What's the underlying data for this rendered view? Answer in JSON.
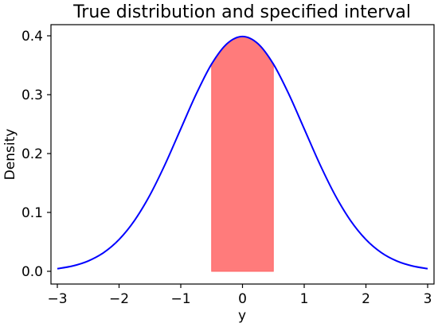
{
  "chart_data": {
    "type": "line",
    "title": "True distribution and specified interval",
    "xlabel": "y",
    "ylabel": "Density",
    "xlim": [
      -3,
      3
    ],
    "ylim": [
      0.0,
      0.4
    ],
    "x_ticks": [
      -3,
      -2,
      -1,
      0,
      1,
      2,
      3
    ],
    "x_tick_labels": [
      "−3",
      "−2",
      "−1",
      "0",
      "1",
      "2",
      "3"
    ],
    "y_ticks": [
      0.0,
      0.1,
      0.2,
      0.3,
      0.4
    ],
    "y_tick_labels": [
      "0.0",
      "0.1",
      "0.2",
      "0.3",
      "0.4"
    ],
    "grid": false,
    "series": [
      {
        "color": "#0000ff",
        "x": [
          -3.0,
          -2.75,
          -2.5,
          -2.25,
          -2.0,
          -1.75,
          -1.5,
          -1.25,
          -1.0,
          -0.75,
          -0.5,
          -0.25,
          0.0,
          0.25,
          0.5,
          0.75,
          1.0,
          1.25,
          1.5,
          1.75,
          2.0,
          2.25,
          2.5,
          2.75,
          3.0
        ],
        "values": [
          0.0044,
          0.0091,
          0.0175,
          0.0317,
          0.054,
          0.0863,
          0.1295,
          0.1826,
          0.242,
          0.3011,
          0.3521,
          0.3867,
          0.3989,
          0.3867,
          0.3521,
          0.3011,
          0.242,
          0.1826,
          0.1295,
          0.0863,
          0.054,
          0.0317,
          0.0175,
          0.0091,
          0.0044
        ]
      }
    ],
    "shaded_interval": {
      "x_start": -0.5,
      "x_end": 0.5,
      "x": [
        -0.5,
        -0.375,
        -0.25,
        -0.125,
        0.0,
        0.125,
        0.25,
        0.375,
        0.5
      ],
      "values": [
        0.3521,
        0.3719,
        0.3867,
        0.3958,
        0.3989,
        0.3958,
        0.3867,
        0.3719,
        0.3521
      ],
      "color": "#ff7b7b",
      "edge_color": "#ff6666"
    }
  }
}
